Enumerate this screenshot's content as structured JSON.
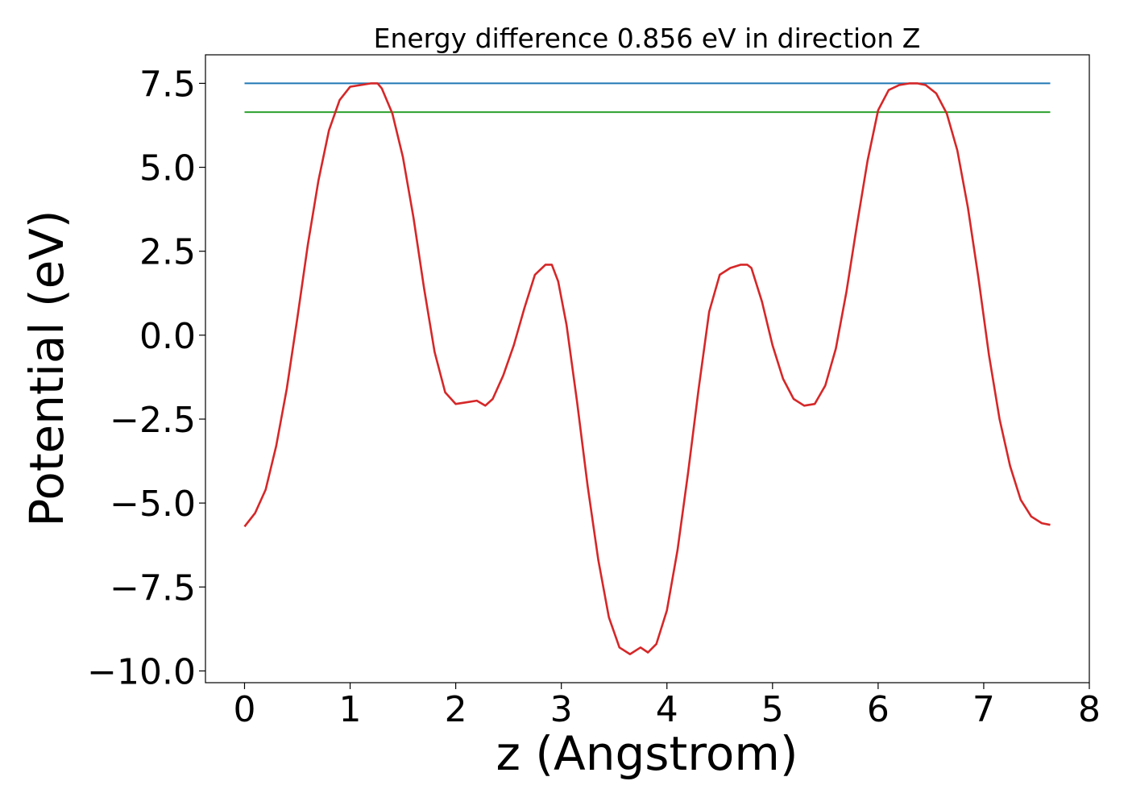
{
  "chart_data": {
    "type": "line",
    "title": "Energy difference 0.856 eV in direction Z",
    "xlabel": "z (Angstrom)",
    "ylabel": "Potential (eV)",
    "xlim": [
      -0.37,
      8.0
    ],
    "ylim": [
      -10.35,
      8.35
    ],
    "grid": false,
    "x_ticks": [
      0,
      1,
      2,
      3,
      4,
      5,
      6,
      7,
      8
    ],
    "x_tick_labels": [
      "0",
      "1",
      "2",
      "3",
      "4",
      "5",
      "6",
      "7",
      "8"
    ],
    "y_ticks": [
      7.5,
      5.0,
      2.5,
      0.0,
      -2.5,
      -5.0,
      -7.5,
      -10.0
    ],
    "y_tick_labels": [
      "7.5",
      "5.0",
      "2.5",
      "0.0",
      "−2.5",
      "−5.0",
      "−7.5",
      "−10.0"
    ],
    "series": [
      {
        "color": "#1f77b4",
        "x": [
          0,
          7.63
        ],
        "y": [
          7.5,
          7.5
        ]
      },
      {
        "color": "#2ca02c",
        "x": [
          0,
          7.63
        ],
        "y": [
          6.644,
          6.644
        ]
      },
      {
        "color": "#d62728",
        "x": [
          0,
          0.1,
          0.2,
          0.3,
          0.4,
          0.5,
          0.6,
          0.7,
          0.8,
          0.9,
          1.0,
          1.1,
          1.2,
          1.26,
          1.3,
          1.4,
          1.5,
          1.6,
          1.7,
          1.8,
          1.9,
          2.0,
          2.1,
          2.2,
          2.28,
          2.35,
          2.45,
          2.55,
          2.65,
          2.75,
          2.85,
          2.91,
          2.97,
          3.05,
          3.15,
          3.25,
          3.35,
          3.45,
          3.55,
          3.65,
          3.75,
          3.82,
          3.9,
          4.0,
          4.1,
          4.2,
          4.3,
          4.4,
          4.5,
          4.6,
          4.7,
          4.76,
          4.8,
          4.9,
          5.0,
          5.1,
          5.2,
          5.3,
          5.4,
          5.5,
          5.6,
          5.7,
          5.8,
          5.9,
          6.0,
          6.1,
          6.2,
          6.3,
          6.37,
          6.45,
          6.55,
          6.65,
          6.75,
          6.85,
          6.95,
          7.05,
          7.15,
          7.25,
          7.35,
          7.45,
          7.55,
          7.63
        ],
        "y": [
          -5.7,
          -5.3,
          -4.6,
          -3.3,
          -1.6,
          0.5,
          2.7,
          4.6,
          6.1,
          7.0,
          7.4,
          7.45,
          7.5,
          7.5,
          7.35,
          6.6,
          5.3,
          3.5,
          1.4,
          -0.5,
          -1.7,
          -2.05,
          -2.0,
          -1.95,
          -2.1,
          -1.9,
          -1.2,
          -0.3,
          0.8,
          1.8,
          2.1,
          2.1,
          1.6,
          0.3,
          -2.0,
          -4.5,
          -6.7,
          -8.4,
          -9.3,
          -9.5,
          -9.3,
          -9.45,
          -9.2,
          -8.2,
          -6.4,
          -4.1,
          -1.6,
          0.7,
          1.8,
          2.0,
          2.1,
          2.1,
          2.0,
          1.0,
          -0.3,
          -1.3,
          -1.9,
          -2.1,
          -2.05,
          -1.5,
          -0.4,
          1.3,
          3.3,
          5.2,
          6.7,
          7.3,
          7.45,
          7.5,
          7.5,
          7.45,
          7.2,
          6.6,
          5.5,
          3.8,
          1.7,
          -0.6,
          -2.5,
          -3.9,
          -4.9,
          -5.4,
          -5.6,
          -5.65
        ]
      }
    ]
  }
}
